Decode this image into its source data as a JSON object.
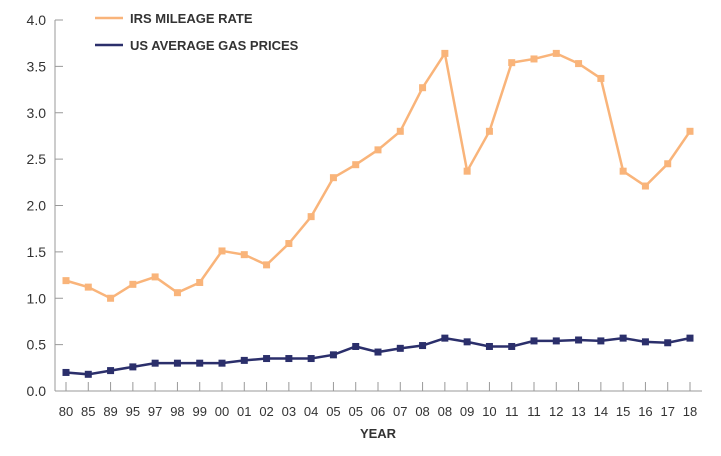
{
  "chart_data": {
    "type": "line",
    "title": "",
    "xlabel": "YEAR",
    "ylabel": "",
    "ylim": [
      0,
      4.0
    ],
    "yticks": [
      "0.0",
      "0.5",
      "1.0",
      "1.5",
      "2.0",
      "2.5",
      "3.0",
      "3.5",
      "4.0"
    ],
    "grid": false,
    "legend_placement": "top-left",
    "categories": [
      "80",
      "85",
      "89",
      "95",
      "97",
      "98",
      "99",
      "00",
      "01",
      "02",
      "03",
      "04",
      "05",
      "05",
      "06",
      "07",
      "08",
      "08",
      "09",
      "10",
      "11",
      "11",
      "12",
      "13",
      "14",
      "15",
      "16",
      "17",
      "18"
    ],
    "series": [
      {
        "name": "IRS MILEAGE RATE",
        "color": "#F9B47A",
        "values": [
          1.19,
          1.12,
          1.0,
          1.15,
          1.23,
          1.06,
          1.17,
          1.51,
          1.47,
          1.36,
          1.59,
          1.88,
          2.3,
          2.44,
          2.6,
          2.8,
          3.27,
          3.64,
          2.37,
          2.8,
          3.54,
          3.58,
          3.64,
          3.53,
          3.37,
          2.37,
          2.21,
          2.45,
          2.8
        ]
      },
      {
        "name": "US AVERAGE GAS PRICES",
        "color": "#2B2F6B",
        "values": [
          0.2,
          0.18,
          0.22,
          0.26,
          0.3,
          0.3,
          0.3,
          0.3,
          0.33,
          0.35,
          0.35,
          0.35,
          0.39,
          0.48,
          0.42,
          0.46,
          0.49,
          0.57,
          0.53,
          0.48,
          0.48,
          0.54,
          0.54,
          0.55,
          0.54,
          0.57,
          0.53,
          0.52,
          0.57
        ]
      }
    ]
  }
}
